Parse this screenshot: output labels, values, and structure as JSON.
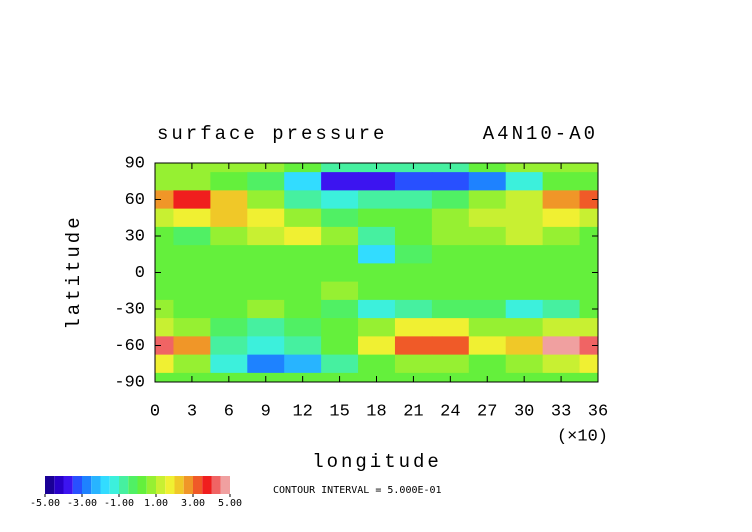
{
  "chart_data": {
    "type": "contour",
    "title": "surface pressure",
    "subtitle": "A4N10-A0",
    "x_label": "longitude",
    "y_label": "latitude",
    "x_scale_note": "(×10)",
    "note": "CONTOUR INTERVAL = 5.000E-01",
    "x": [
      0,
      3,
      6,
      9,
      12,
      15,
      18,
      21,
      24,
      27,
      30,
      33,
      36
    ],
    "y": [
      90,
      75,
      60,
      45,
      30,
      15,
      0,
      -15,
      -30,
      -45,
      -60,
      -75,
      -90
    ],
    "z": [
      [
        0.5,
        0.5,
        0.5,
        0.5,
        0,
        -1,
        -1,
        -1,
        -1,
        0,
        0.5,
        0.5,
        0.5
      ],
      [
        0.5,
        0.5,
        0,
        -0.5,
        -2,
        -4,
        -4,
        -3.5,
        -3.5,
        -3,
        -1.5,
        0,
        0
      ],
      [
        2.5,
        3.5,
        2,
        0.5,
        -1,
        -1.5,
        -1,
        -1,
        -0.5,
        0.5,
        1,
        2.5,
        3
      ],
      [
        1,
        1.5,
        2,
        1.5,
        0.5,
        -0.5,
        0,
        0,
        0.5,
        1,
        1,
        1.5,
        1
      ],
      [
        0,
        -0.5,
        0.5,
        1,
        1.5,
        0.5,
        -1,
        0,
        0.5,
        0.5,
        1,
        0.5,
        0
      ],
      [
        0,
        0,
        0,
        0,
        0,
        0,
        -2,
        -0.5,
        0,
        0,
        0,
        0,
        0
      ],
      [
        0,
        0,
        0,
        0,
        0,
        0,
        0,
        0,
        0,
        0,
        0,
        0,
        0
      ],
      [
        0,
        0,
        0,
        0,
        0,
        0.5,
        0,
        0,
        0,
        0,
        0,
        0,
        0
      ],
      [
        0.5,
        0,
        0,
        0.5,
        0,
        -0.5,
        -1.5,
        -1,
        -0.5,
        -0.5,
        -1.5,
        -1,
        0
      ],
      [
        1,
        0.5,
        -0.5,
        -1,
        -0.5,
        0,
        0.5,
        1.5,
        1.5,
        0.5,
        0.5,
        1,
        1
      ],
      [
        4,
        2.5,
        -1,
        -1.5,
        -1,
        0,
        1.5,
        3,
        3,
        1.5,
        2,
        4.5,
        4
      ],
      [
        1.5,
        0.5,
        -1.5,
        -3,
        -2.5,
        -1,
        0,
        0.5,
        0.5,
        0,
        0.5,
        1,
        1.5
      ],
      [
        0,
        0,
        0,
        0,
        0,
        0,
        0,
        0,
        0,
        0,
        0,
        0,
        0
      ]
    ],
    "xlim": [
      0,
      36
    ],
    "ylim": [
      -90,
      90
    ],
    "xticks": [
      0,
      3,
      6,
      9,
      12,
      15,
      18,
      21,
      24,
      27,
      30,
      33,
      36
    ],
    "yticks": [
      -90,
      -60,
      -30,
      0,
      30,
      60,
      90
    ],
    "levels": [
      -5,
      -4.5,
      -4,
      -3.5,
      -3,
      -2.5,
      -2,
      -1.5,
      -1,
      -0.5,
      0,
      0.5,
      1,
      1.5,
      2,
      2.5,
      3,
      3.5,
      4,
      4.5,
      5
    ],
    "colors": [
      "#1a0096",
      "#2800c8",
      "#3c14f0",
      "#2850ff",
      "#1e82ff",
      "#28b4ff",
      "#32dcff",
      "#3cf0dc",
      "#46f0a0",
      "#50f064",
      "#64f03c",
      "#96f032",
      "#c8f032",
      "#f0f032",
      "#f0c828",
      "#f09628",
      "#f05a28",
      "#f01e1e",
      "#f06464",
      "#f0a0a0"
    ],
    "colorbar_ticks": [
      {
        "value": -5,
        "label": "-5.00"
      },
      {
        "value": -3,
        "label": "-3.00"
      },
      {
        "value": -1,
        "label": "-1.00"
      },
      {
        "value": 1,
        "label": "1.00"
      },
      {
        "value": 3,
        "label": "3.00"
      },
      {
        "value": 5,
        "label": "5.00"
      }
    ]
  }
}
